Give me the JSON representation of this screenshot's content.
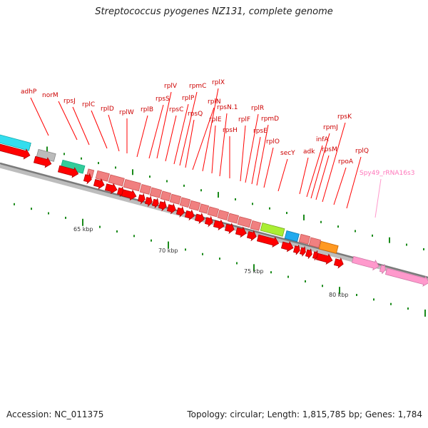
{
  "title": "Streptococcus pyogenes NZ131, complete genome",
  "footer": {
    "accession": "Accession: NC_011375",
    "topology": "Topology: circular; Length: 1,815,785 bp; Genes: 1,784"
  },
  "colors": {
    "backbone": "#888888",
    "backbone_light": "#bdbdbd",
    "cds": "#ff0000",
    "cds_outline": "#b40000",
    "ribosomal": "#f08080",
    "label": "#cc0000",
    "rrna": "#ff99cc",
    "rrna_label": "#ff77bb",
    "tick": "#1a8a1a",
    "cyan": "#33ddee",
    "grey": "#bbbbbb",
    "teal": "#33cc99",
    "lime": "#aaee33",
    "blue": "#22aaee",
    "orange": "#ff9922"
  },
  "scale": {
    "labels": [
      "65 kbp",
      "70 kbp",
      "75 kbp",
      "80 kbp"
    ]
  },
  "gene_labels": [
    "adhP",
    "norM",
    "rpsJ",
    "rplC",
    "rplD",
    "rplW",
    "rplB",
    "rpsS",
    "rplV",
    "rpsC",
    "rplP",
    "rpmC",
    "rpsQ",
    "rplN",
    "rplX",
    "rplE",
    "rpsN.1",
    "rpsH",
    "rplF",
    "rplR",
    "rpsE",
    "rpmD",
    "rplO",
    "secY",
    "adk",
    "infA",
    "rpmJ",
    "rpsM",
    "rpsK",
    "rpoA",
    "rplQ",
    "Spy49_rRNA16s3"
  ]
}
